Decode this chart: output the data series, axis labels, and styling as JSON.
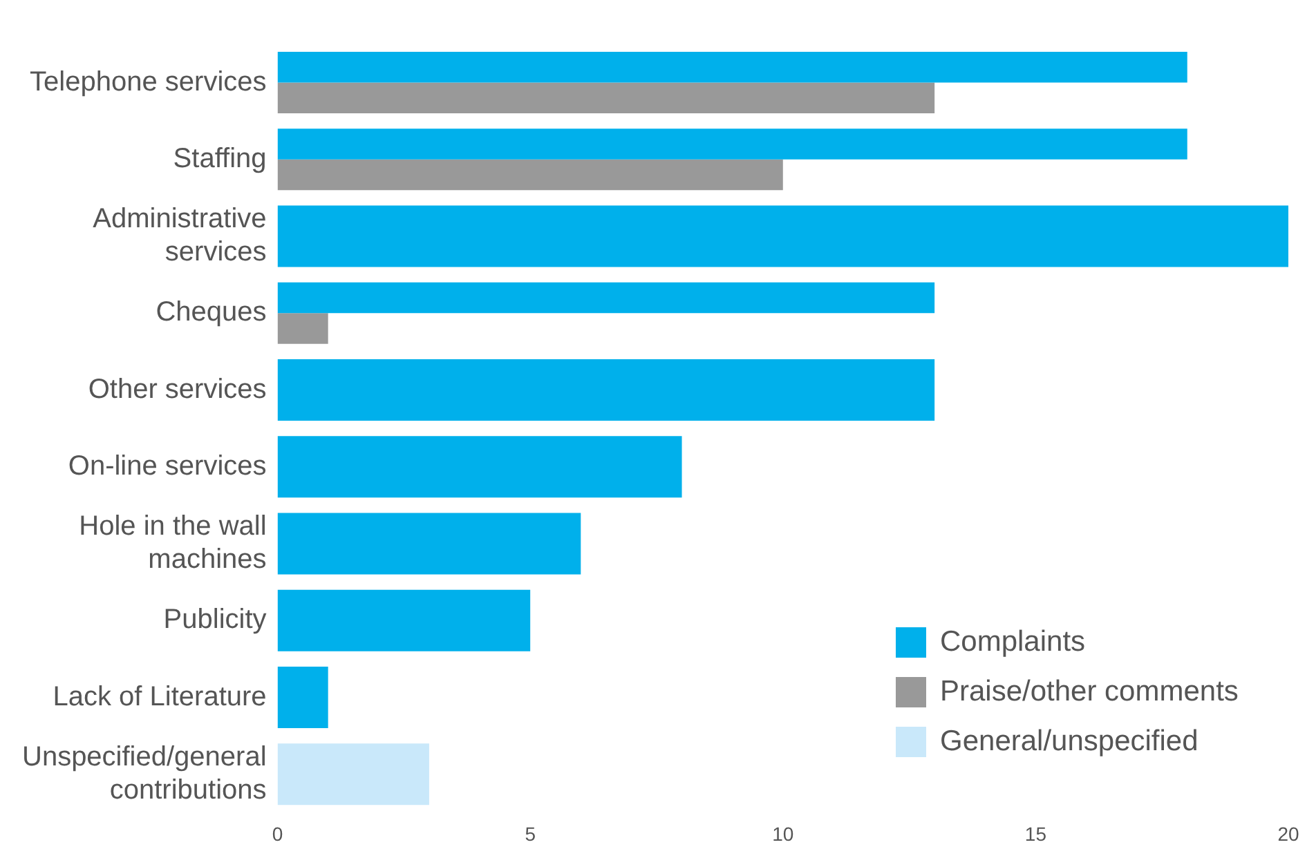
{
  "chart_data": {
    "type": "bar",
    "orientation": "horizontal",
    "categories": [
      "Telephone services",
      "Staffing",
      "Administrative services",
      "Cheques",
      "Other services",
      "On-line services",
      "Hole in the wall machines",
      "Publicity",
      "Lack of Literature",
      "Unspecified/general contributions"
    ],
    "series": [
      {
        "name": "Complaints",
        "color": "#00b0eb",
        "values": [
          18,
          18,
          20,
          13,
          13,
          8,
          6,
          5,
          1,
          null
        ]
      },
      {
        "name": "Praise/other comments",
        "color": "#999999",
        "values": [
          13,
          10,
          null,
          1,
          null,
          null,
          null,
          null,
          null,
          null
        ]
      },
      {
        "name": "General/unspecified",
        "color": "#c9e8fa",
        "values": [
          null,
          null,
          null,
          null,
          null,
          null,
          null,
          null,
          null,
          3
        ]
      }
    ],
    "xlim": [
      0,
      20
    ],
    "xticks": [
      0,
      5,
      10,
      15,
      20
    ],
    "grid": false,
    "legend": "bottom right"
  }
}
